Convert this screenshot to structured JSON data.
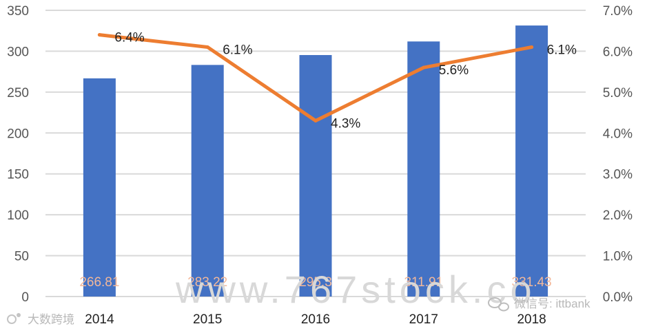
{
  "chart_data": {
    "type": "bar",
    "categories": [
      "2014",
      "2015",
      "2016",
      "2017",
      "2018"
    ],
    "series": [
      {
        "type": "bar",
        "axis": "left",
        "color": "#4472C4",
        "values": [
          266.81,
          283.22,
          295.3,
          311.91,
          331.43
        ],
        "labels": [
          "266.81",
          "283.22",
          "295.3",
          "311.91",
          "331.43"
        ]
      },
      {
        "type": "line",
        "axis": "right",
        "color": "#ED7D31",
        "values": [
          6.4,
          6.1,
          4.3,
          5.6,
          6.1
        ],
        "labels": [
          "6.4%",
          "6.1%",
          "4.3%",
          "5.6%",
          "6.1%"
        ]
      }
    ],
    "y_left": {
      "min": 0,
      "max": 350,
      "step": 50,
      "ticks": [
        "0",
        "50",
        "100",
        "150",
        "200",
        "250",
        "300",
        "350"
      ]
    },
    "y_right": {
      "min": 0,
      "max": 7,
      "step": 1,
      "ticks": [
        "0.0%",
        "1.0%",
        "2.0%",
        "3.0%",
        "4.0%",
        "5.0%",
        "6.0%",
        "7.0%"
      ]
    },
    "grid": true,
    "title": "",
    "xlabel": "",
    "ylabel": ""
  },
  "watermark": {
    "text": "www.767stock.co"
  },
  "brand_left": {
    "text": "大数跨境"
  },
  "brand_right": {
    "text": "微信号: ittbank"
  },
  "colors": {
    "grid": "#d9d9d9",
    "bar": "#4472C4",
    "line": "#ED7D31"
  }
}
